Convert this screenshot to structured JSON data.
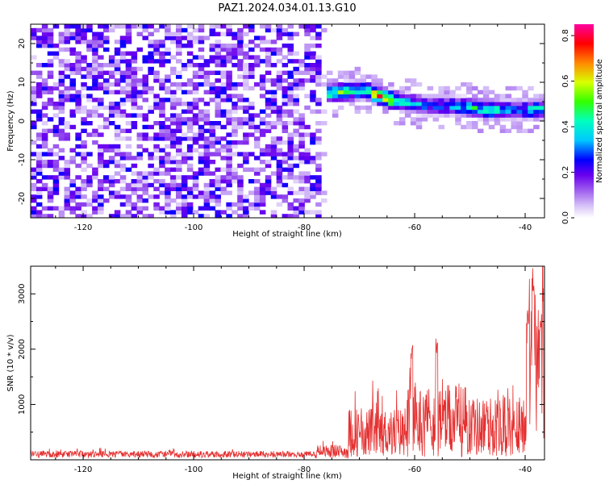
{
  "title": "PAZ1.2024.034.01.13.G10",
  "chart_data": [
    {
      "type": "heatmap",
      "xlabel": "Height of straight line (km)",
      "ylabel": "Frequency (Hz)",
      "xlim": [
        -129.5,
        -36.5
      ],
      "ylim": [
        -25,
        25
      ],
      "xticks": [
        -120,
        -100,
        -80,
        -60,
        -40
      ],
      "yticks": [
        -20,
        -10,
        0,
        10,
        20
      ],
      "colorbar": {
        "label": "Normalized spectral amplitude",
        "range": [
          0,
          0.85
        ],
        "ticks": [
          0.0,
          0.2,
          0.4,
          0.6,
          0.8
        ],
        "colormap": [
          "#ffffff",
          "#d8c4f8",
          "#a060ee",
          "#6a00ee",
          "#0000ff",
          "#00c8ff",
          "#00ffbf",
          "#33ff00",
          "#d8ff00",
          "#ff8800",
          "#ff0000",
          "#ff00a0"
        ]
      },
      "ridge": {
        "description_points": [
          {
            "x": -74,
            "freq": 7.5,
            "amp": 0.55
          },
          {
            "x": -69,
            "freq": 8.0,
            "amp": 0.5
          },
          {
            "x": -65.5,
            "freq": 6.0,
            "amp": 0.85
          },
          {
            "x": -62,
            "freq": 5.0,
            "amp": 0.5
          },
          {
            "x": -58,
            "freq": 4.0,
            "amp": 0.35
          },
          {
            "x": -53,
            "freq": 4.0,
            "amp": 0.4
          },
          {
            "x": -47,
            "freq": 3.0,
            "amp": 0.55
          },
          {
            "x": -42,
            "freq": 3.0,
            "amp": 0.35
          },
          {
            "x": -38,
            "freq": 3.0,
            "amp": 0.5
          }
        ]
      },
      "noise_floor": 0.12
    },
    {
      "type": "line",
      "xlabel": "Height of straight line (km)",
      "ylabel": "SNR (10 * v/v)",
      "xlim": [
        -129.5,
        -36.5
      ],
      "ylim": [
        0,
        3500
      ],
      "xticks": [
        -120,
        -100,
        -80,
        -60,
        -40
      ],
      "yticks": [
        1000,
        2000,
        3000
      ],
      "color": "#e53030",
      "segments": [
        {
          "x0": -129.5,
          "x1": -78,
          "base": 100,
          "noise": 60
        },
        {
          "x0": -78,
          "x1": -72,
          "base": 150,
          "noise": 120
        },
        {
          "x0": -72,
          "x1": -62,
          "base": 500,
          "noise": 450
        },
        {
          "x0": -62,
          "x1": -50,
          "base": 700,
          "noise": 650
        },
        {
          "x0": -50,
          "x1": -40,
          "base": 600,
          "noise": 550
        },
        {
          "x0": -40,
          "x1": -36.5,
          "base": 1800,
          "noise": 1500
        }
      ],
      "peaks": [
        {
          "x": -60.5,
          "y": 2100
        },
        {
          "x": -56,
          "y": 2250
        },
        {
          "x": -39.5,
          "y": 2800
        },
        {
          "x": -38.6,
          "y": 3500
        },
        {
          "x": -37.2,
          "y": 2700
        }
      ]
    }
  ]
}
